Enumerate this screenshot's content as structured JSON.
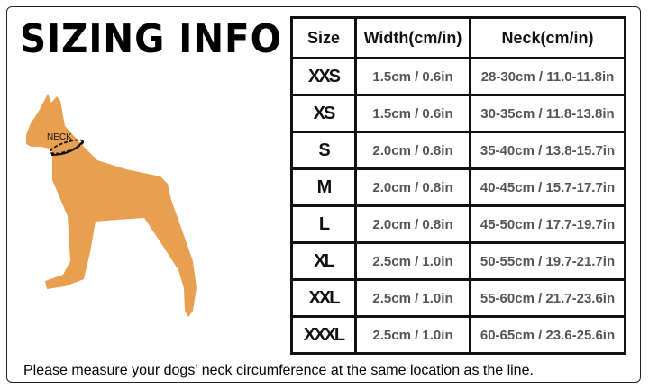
{
  "title": "SIZING INFO",
  "diagram": {
    "neck_label": "NECK",
    "dog_color": "#E8A050"
  },
  "table": {
    "headers": [
      "Size",
      "Width(cm/in)",
      "Neck(cm/in)"
    ],
    "rows": [
      {
        "size": "XXS",
        "width": "1.5cm / 0.6in",
        "neck": "28-30cm / 11.0-11.8in"
      },
      {
        "size": "XS",
        "width": "1.5cm / 0.6in",
        "neck": "30-35cm / 11.8-13.8in"
      },
      {
        "size": "S",
        "width": "2.0cm / 0.8in",
        "neck": "35-40cm / 13.8-15.7in"
      },
      {
        "size": "M",
        "width": "2.0cm / 0.8in",
        "neck": "40-45cm / 15.7-17.7in"
      },
      {
        "size": "L",
        "width": "2.0cm / 0.8in",
        "neck": "45-50cm / 17.7-19.7in"
      },
      {
        "size": "XL",
        "width": "2.5cm / 1.0in",
        "neck": "50-55cm / 19.7-21.7in"
      },
      {
        "size": "XXL",
        "width": "2.5cm / 1.0in",
        "neck": "55-60cm / 21.7-23.6in"
      },
      {
        "size": "XXXL",
        "width": "2.5cm / 1.0in",
        "neck": "60-65cm / 23.6-25.6in"
      }
    ]
  },
  "note": "Please measure your dogs’  neck circumference at the same location as the line."
}
